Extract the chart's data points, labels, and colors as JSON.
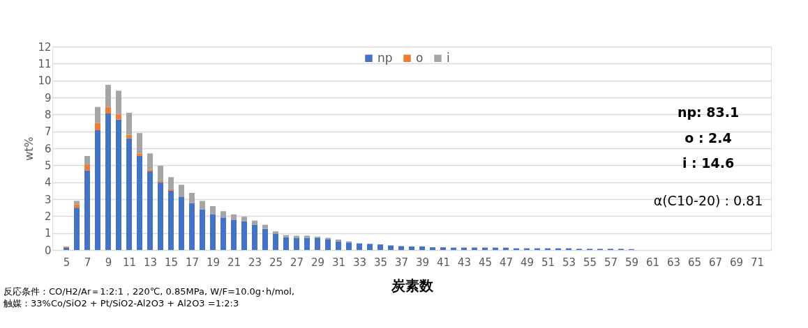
{
  "chart_data": {
    "type": "bar",
    "stacked": true,
    "xlabel": "炭素数",
    "ylabel": "wt%",
    "x": [
      5,
      6,
      7,
      8,
      9,
      10,
      11,
      12,
      13,
      14,
      15,
      16,
      17,
      18,
      19,
      20,
      21,
      22,
      23,
      24,
      25,
      26,
      27,
      28,
      29,
      30,
      31,
      32,
      33,
      34,
      35,
      36,
      37,
      38,
      39,
      40,
      41,
      42,
      43,
      44,
      45,
      46,
      47,
      48,
      49,
      50,
      51,
      52,
      53,
      54,
      55,
      56,
      57,
      58,
      59,
      60,
      61,
      62,
      63,
      64,
      65,
      66,
      67,
      68,
      69,
      70,
      71
    ],
    "series": [
      {
        "name": "np",
        "color": "#4472c4",
        "values": [
          0.15,
          2.5,
          4.7,
          7.07,
          8.05,
          7.7,
          6.6,
          5.55,
          4.65,
          4.0,
          3.5,
          3.15,
          2.77,
          2.4,
          2.12,
          1.92,
          1.77,
          1.69,
          1.49,
          1.25,
          0.97,
          0.75,
          0.72,
          0.72,
          0.7,
          0.64,
          0.51,
          0.44,
          0.39,
          0.36,
          0.33,
          0.27,
          0.23,
          0.21,
          0.21,
          0.16,
          0.16,
          0.14,
          0.14,
          0.14,
          0.14,
          0.14,
          0.14,
          0.1,
          0.1,
          0.1,
          0.1,
          0.1,
          0.1,
          0.07,
          0.07,
          0.07,
          0.07,
          0.07,
          0.05,
          0,
          0,
          0,
          0,
          0,
          0,
          0,
          0,
          0,
          0,
          0,
          0
        ]
      },
      {
        "name": "o",
        "color": "#ed7d31",
        "values": [
          0.05,
          0.2,
          0.35,
          0.42,
          0.4,
          0.3,
          0.2,
          0.15,
          0.1,
          0.07,
          0.1,
          0,
          0,
          0,
          0,
          0,
          0,
          0,
          0,
          0,
          0,
          0,
          0,
          0,
          0,
          0,
          0,
          0,
          0,
          0,
          0,
          0,
          0,
          0,
          0,
          0,
          0,
          0,
          0,
          0,
          0,
          0,
          0,
          0,
          0,
          0,
          0,
          0,
          0,
          0,
          0,
          0,
          0,
          0,
          0,
          0,
          0,
          0,
          0,
          0,
          0,
          0,
          0,
          0,
          0,
          0,
          0
        ]
      },
      {
        "name": "i",
        "color": "#a5a5a5",
        "values": [
          null,
          0.2,
          0.5,
          0.95,
          1.3,
          1.4,
          1.3,
          1.2,
          0.95,
          0.9,
          0.7,
          0.7,
          0.6,
          0.5,
          0.47,
          0.37,
          0.33,
          0.28,
          0.25,
          0.24,
          0.13,
          0.13,
          0.12,
          0.13,
          0.09,
          0.08,
          0.11,
          0.07,
          0,
          0,
          0,
          0,
          0,
          0,
          0,
          0,
          0,
          0,
          0,
          0,
          0,
          0,
          0,
          0,
          0,
          0,
          0,
          0,
          0,
          0,
          0,
          0,
          0,
          0,
          0,
          0,
          0,
          0,
          0,
          0,
          0,
          0,
          0,
          0,
          0,
          0,
          0
        ]
      }
    ],
    "xlim": [
      4,
      72
    ],
    "xticks": [
      5,
      7,
      9,
      11,
      13,
      15,
      17,
      19,
      21,
      23,
      25,
      27,
      29,
      31,
      33,
      35,
      37,
      39,
      41,
      43,
      45,
      47,
      49,
      51,
      53,
      55,
      57,
      59,
      61,
      63,
      65,
      67,
      69,
      71
    ],
    "ylim": [
      0,
      12
    ],
    "yticks": [
      0,
      1,
      2,
      3,
      4,
      5,
      6,
      7,
      8,
      9,
      10,
      11,
      12
    ],
    "grid": "y",
    "legend": "top",
    "annotations": [
      "np: 83.1",
      "o :  2.4",
      "i : 14.6",
      "α(C10-20) :  0.81",
      "反応条件：CO/H2/Ar＝1:2:1，220℃, 0.85MPa, W/F=10.0g･h/mol,",
      "触媒：33%Co/SiO2 + Pt/SiO2-Al2O3 + Al2O3 =1:2:3"
    ]
  }
}
